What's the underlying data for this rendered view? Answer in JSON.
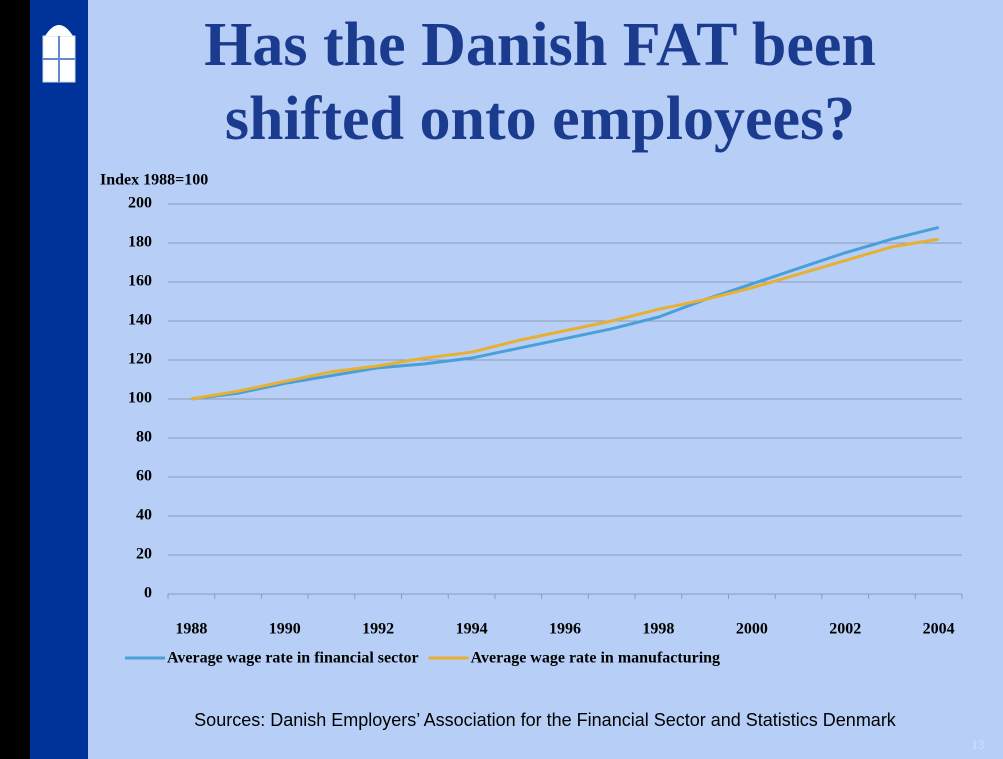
{
  "chart_data": {
    "type": "line",
    "title": "Has the Danish FAT been shifted onto employees?",
    "y_label": "Index 1988=100",
    "categories": [
      "1988",
      null,
      "1990",
      null,
      "1992",
      null,
      "1994",
      null,
      "1996",
      null,
      "1998",
      null,
      "2000",
      null,
      "2002",
      null,
      "2004"
    ],
    "series": [
      {
        "name": "Average wage rate in financial sector",
        "color": "#4a9fd8",
        "values": [
          100,
          103,
          108,
          112,
          116,
          118,
          121,
          126,
          131,
          136,
          142,
          151,
          159,
          167,
          175,
          182,
          188
        ]
      },
      {
        "name": "Average wage rate in manufacturing",
        "color": "#e8b030",
        "values": [
          100,
          104,
          109,
          114,
          117,
          121,
          124,
          130,
          135,
          140,
          146,
          151,
          157,
          164,
          171,
          178,
          182
        ]
      }
    ],
    "ylim": [
      0,
      200
    ],
    "yticks": [
      0,
      20,
      40,
      60,
      80,
      100,
      120,
      140,
      160,
      180,
      200
    ],
    "grid": true,
    "legend": "bottom",
    "source": "Sources: Danish Employers’ Association for the Financial Sector and Statistics Denmark",
    "slide_number": "13"
  }
}
